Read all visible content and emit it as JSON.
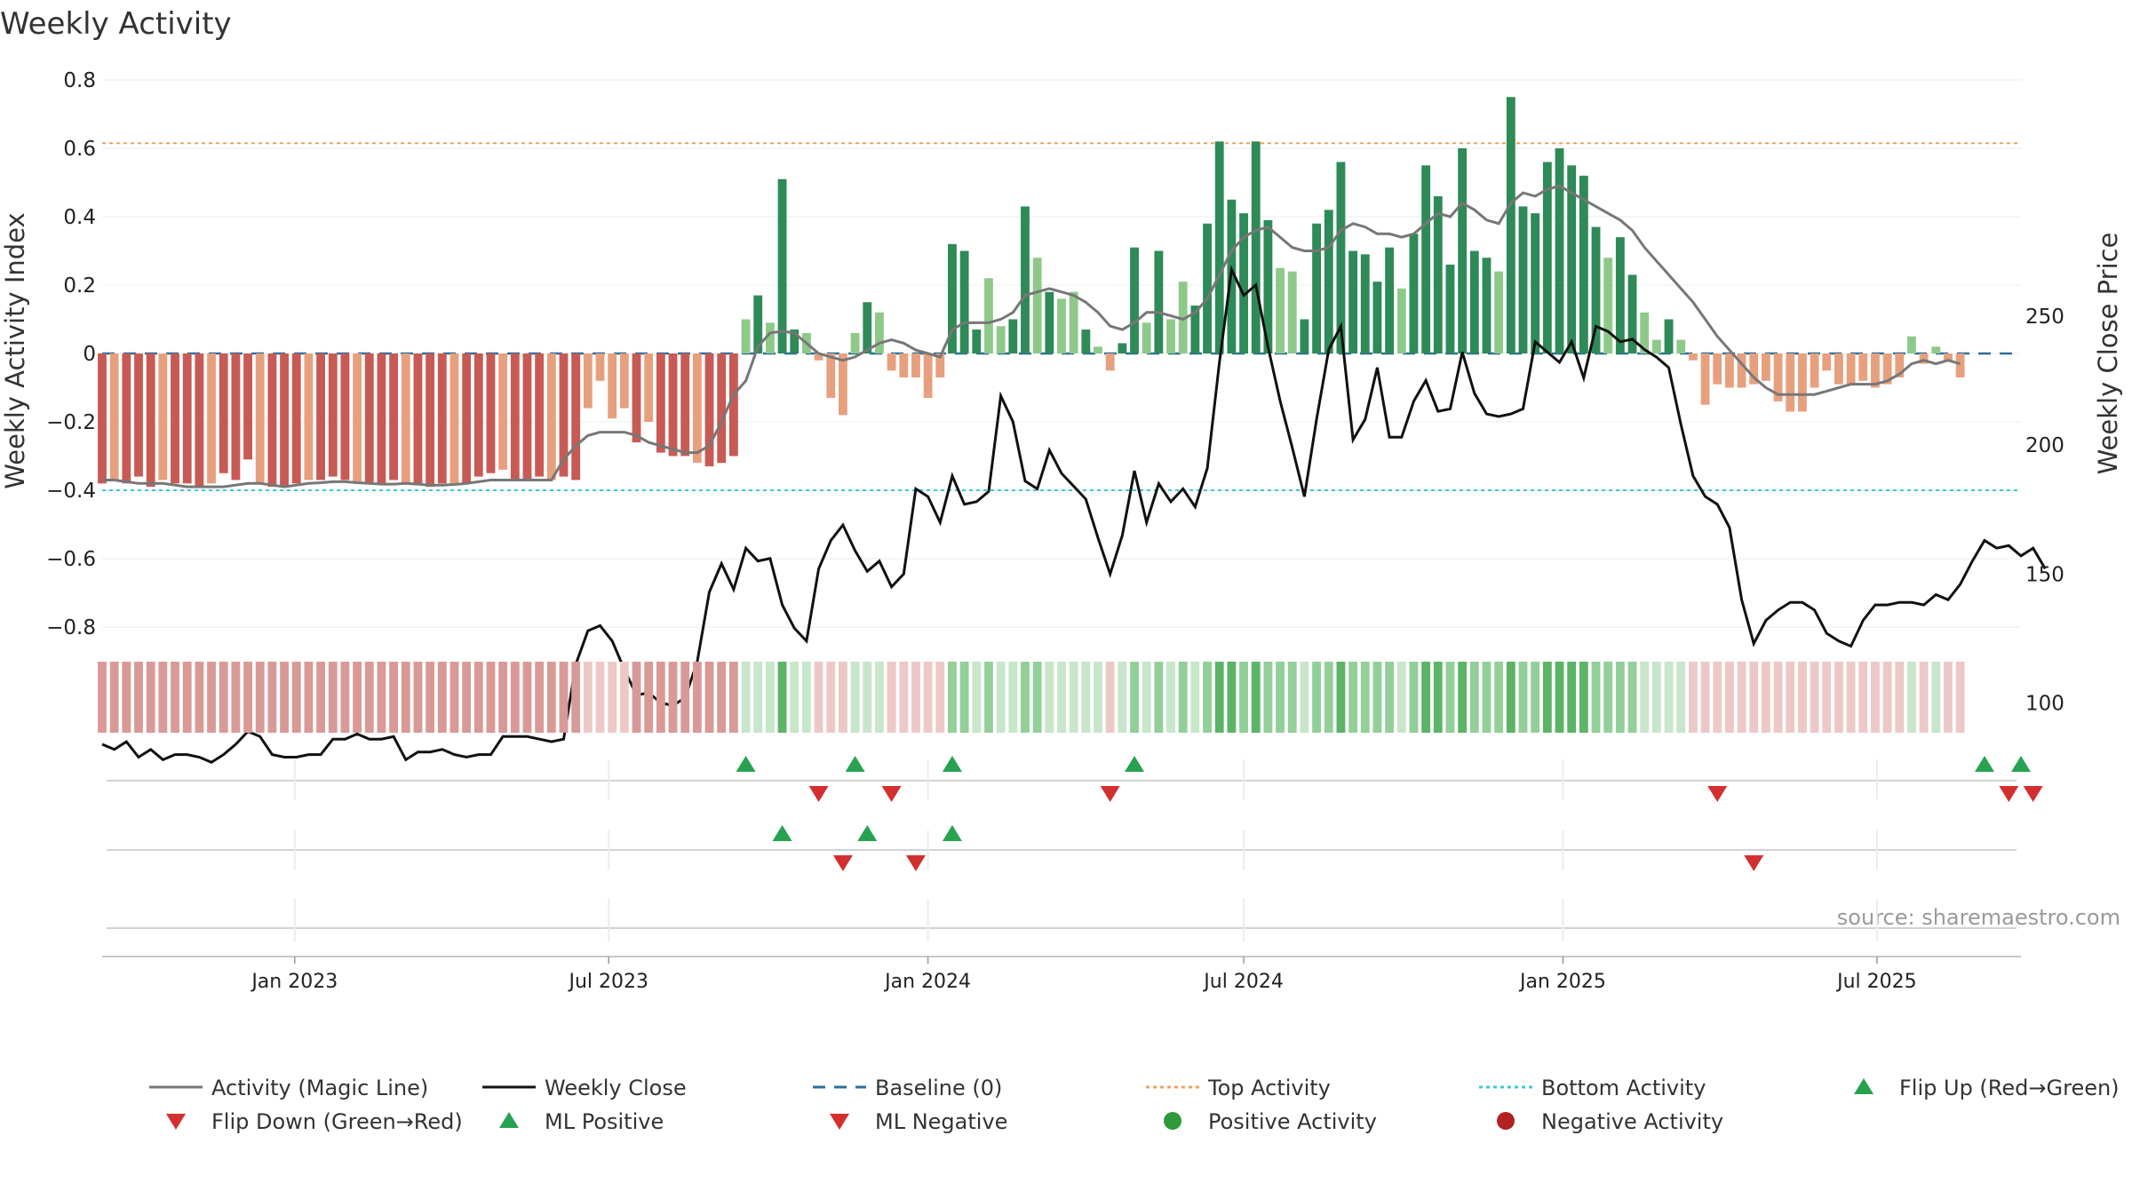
{
  "chart_data": {
    "type": "bar+line",
    "title": "Weekly Activity",
    "ylabel_left": "Weekly Activity Index",
    "ylabel_right": "Weekly Close Price",
    "source": "source: sharemaestro.com",
    "ylim_left": [
      -0.88,
      0.84
    ],
    "ylim_right": [
      64,
      280
    ],
    "yticks_left": [
      0.8,
      0.6,
      0.4,
      0.2,
      0,
      -0.2,
      -0.4,
      -0.6,
      -0.8
    ],
    "yticks_left_labels": [
      "0.8",
      "0.6",
      "0.4",
      "0.2",
      "0",
      "−0.2",
      "−0.4",
      "−0.6",
      "−0.8"
    ],
    "yticks_right": [
      250,
      200,
      150,
      100
    ],
    "yticks_right_labels": [
      "250",
      "200",
      "150",
      "100"
    ],
    "x_range": [
      "2022-09-12",
      "2025-09-22"
    ],
    "x_ticks": [
      {
        "date": "2023-01-01",
        "label": "Jan 2023"
      },
      {
        "date": "2023-07-01",
        "label": "Jul 2023"
      },
      {
        "date": "2024-01-01",
        "label": "Jan 2024"
      },
      {
        "date": "2024-07-01",
        "label": "Jul 2024"
      },
      {
        "date": "2025-01-01",
        "label": "Jan 2025"
      },
      {
        "date": "2025-07-01",
        "label": "Jul 2025"
      }
    ],
    "top_activity": 0.615,
    "bottom_activity": -0.4,
    "baseline": 0,
    "weeks_start": "2022-09-12",
    "activity": [
      -0.38,
      -0.37,
      -0.38,
      -0.36,
      -0.39,
      -0.37,
      -0.38,
      -0.38,
      -0.39,
      -0.38,
      -0.35,
      -0.37,
      -0.31,
      -0.38,
      -0.39,
      -0.39,
      -0.38,
      -0.37,
      -0.37,
      -0.36,
      -0.37,
      -0.38,
      -0.38,
      -0.38,
      -0.37,
      -0.38,
      -0.38,
      -0.39,
      -0.38,
      -0.38,
      -0.38,
      -0.36,
      -0.35,
      -0.34,
      -0.37,
      -0.37,
      -0.36,
      -0.37,
      -0.36,
      -0.37,
      -0.16,
      -0.08,
      -0.19,
      -0.16,
      -0.26,
      -0.2,
      -0.29,
      -0.3,
      -0.3,
      -0.32,
      -0.33,
      -0.32,
      -0.3,
      0.1,
      0.17,
      0.09,
      0.51,
      0.07,
      0.06,
      -0.02,
      -0.13,
      -0.18,
      0.06,
      0.15,
      0.12,
      -0.05,
      -0.07,
      -0.07,
      -0.13,
      -0.07,
      0.32,
      0.3,
      0.07,
      0.22,
      0.08,
      0.1,
      0.43,
      0.28,
      0.18,
      0.16,
      0.18,
      0.07,
      0.02,
      -0.05,
      0.03,
      0.31,
      0.09,
      0.3,
      0.1,
      0.21,
      0.14,
      0.38,
      0.62,
      0.45,
      0.41,
      0.62,
      0.39,
      0.25,
      0.24,
      0.1,
      0.38,
      0.42,
      0.56,
      0.3,
      0.29,
      0.21,
      0.31,
      0.19,
      0.35,
      0.55,
      0.46,
      0.26,
      0.6,
      0.3,
      0.28,
      0.24,
      0.75,
      0.43,
      0.41,
      0.56,
      0.6,
      0.55,
      0.52,
      0.37,
      0.28,
      0.34,
      0.23,
      0.12,
      0.04,
      0.1,
      0.04,
      -0.02,
      -0.15,
      -0.09,
      -0.1,
      -0.1,
      -0.09,
      -0.08,
      -0.14,
      -0.17,
      -0.17,
      -0.1,
      -0.05,
      -0.09,
      -0.09,
      -0.08,
      -0.1,
      -0.09,
      -0.07,
      0.05,
      -0.03,
      0.02,
      -0.02,
      -0.07
    ],
    "magic_line": [
      -0.37,
      -0.37,
      -0.375,
      -0.38,
      -0.38,
      -0.38,
      -0.385,
      -0.39,
      -0.39,
      -0.39,
      -0.39,
      -0.385,
      -0.38,
      -0.38,
      -0.385,
      -0.39,
      -0.385,
      -0.38,
      -0.378,
      -0.375,
      -0.375,
      -0.378,
      -0.38,
      -0.382,
      -0.382,
      -0.38,
      -0.382,
      -0.385,
      -0.385,
      -0.383,
      -0.38,
      -0.375,
      -0.37,
      -0.37,
      -0.37,
      -0.37,
      -0.37,
      -0.37,
      -0.31,
      -0.27,
      -0.24,
      -0.23,
      -0.23,
      -0.23,
      -0.24,
      -0.26,
      -0.27,
      -0.28,
      -0.29,
      -0.29,
      -0.27,
      -0.2,
      -0.12,
      -0.08,
      0.02,
      0.06,
      0.065,
      0.06,
      0.03,
      0.0,
      -0.01,
      -0.02,
      -0.01,
      0.01,
      0.03,
      0.04,
      0.03,
      0.01,
      0.0,
      -0.01,
      0.07,
      0.09,
      0.09,
      0.09,
      0.1,
      0.12,
      0.17,
      0.18,
      0.19,
      0.18,
      0.17,
      0.15,
      0.12,
      0.08,
      0.07,
      0.09,
      0.12,
      0.12,
      0.11,
      0.1,
      0.12,
      0.16,
      0.23,
      0.3,
      0.34,
      0.36,
      0.37,
      0.34,
      0.31,
      0.3,
      0.3,
      0.31,
      0.36,
      0.38,
      0.37,
      0.35,
      0.35,
      0.34,
      0.35,
      0.38,
      0.41,
      0.4,
      0.44,
      0.42,
      0.39,
      0.38,
      0.44,
      0.47,
      0.46,
      0.48,
      0.49,
      0.47,
      0.45,
      0.43,
      0.41,
      0.39,
      0.36,
      0.31,
      0.27,
      0.23,
      0.19,
      0.15,
      0.1,
      0.05,
      0.01,
      -0.03,
      -0.07,
      -0.1,
      -0.12,
      -0.12,
      -0.12,
      -0.12,
      -0.11,
      -0.1,
      -0.09,
      -0.09,
      -0.09,
      -0.08,
      -0.06,
      -0.03,
      -0.02,
      -0.03,
      -0.02,
      -0.03
    ],
    "weekly_close": [
      84,
      82,
      85,
      79,
      82,
      78,
      80,
      80,
      79,
      77,
      80,
      84,
      89,
      87,
      80,
      79,
      79,
      80,
      80,
      86,
      86,
      88,
      86,
      86,
      87,
      78,
      81,
      81,
      82,
      80,
      79,
      80,
      80,
      87,
      87,
      87,
      86,
      85,
      86,
      115,
      128,
      130,
      124,
      113,
      103,
      104,
      100,
      99,
      102,
      116,
      143,
      154,
      144,
      160,
      155,
      156,
      138,
      129,
      124,
      152,
      163,
      169,
      159,
      151,
      155,
      145,
      150,
      183,
      180,
      170,
      188,
      177,
      178,
      182,
      219,
      209,
      186,
      183,
      198,
      189,
      184,
      179,
      164,
      150,
      165,
      190,
      170,
      185,
      178,
      183,
      176,
      191,
      232,
      268,
      258,
      262,
      238,
      217,
      199,
      180,
      210,
      237,
      246,
      202,
      210,
      230,
      203,
      203,
      217,
      225,
      213,
      214,
      236,
      220,
      212,
      211,
      212,
      214,
      240,
      236,
      232,
      240,
      226,
      246,
      244,
      240,
      241,
      237,
      234,
      230,
      208,
      188,
      180,
      177,
      168,
      140,
      123,
      132,
      136,
      139,
      139,
      136,
      127,
      124,
      122,
      132,
      138,
      138,
      139,
      139,
      138,
      142,
      140,
      146,
      155,
      163,
      160,
      161,
      157,
      160,
      152
    ],
    "strip_colors": {
      "red": "#d99a97",
      "light_red": "#ecc9c7",
      "light_green": "#c8e6ca",
      "mid_green": "#93cf98",
      "green": "#5cb466"
    },
    "bar_colors": {
      "dark_red": "#c85a55",
      "light_red": "#e7a07e",
      "dark_green": "#2e8a57",
      "light_green": "#8fc98a"
    },
    "line_colors": {
      "magic": "#777777",
      "close": "#111111",
      "baseline": "#2e6e9e",
      "top": "#f0a060",
      "bottom": "#3cc8dc"
    },
    "flip_up_weeks": [
      53,
      62,
      70,
      85,
      155,
      158
    ],
    "flip_down_weeks": [
      59,
      65,
      83,
      133,
      157,
      159
    ],
    "ml_positive_weeks": [
      56,
      63,
      70
    ],
    "ml_negative_weeks": [
      61,
      67,
      136
    ],
    "legend": [
      {
        "label": "Activity (Magic Line)",
        "kind": "line",
        "color": "#777777"
      },
      {
        "label": "Weekly Close",
        "kind": "line",
        "color": "#111111"
      },
      {
        "label": "Baseline (0)",
        "kind": "dash",
        "color": "#2e6e9e"
      },
      {
        "label": "Top Activity",
        "kind": "dot",
        "color": "#f0a060"
      },
      {
        "label": "Bottom Activity",
        "kind": "dot",
        "color": "#3cc8dc"
      },
      {
        "label": "Flip Up (Red→Green)",
        "kind": "up",
        "color": "#27a251"
      },
      {
        "label": "Flip Down (Green→Red)",
        "kind": "down",
        "color": "#d32f2f"
      },
      {
        "label": "ML Positive",
        "kind": "up",
        "color": "#27a251"
      },
      {
        "label": "ML Negative",
        "kind": "down",
        "color": "#d32f2f"
      },
      {
        "label": "Positive Activity",
        "kind": "circle",
        "color": "#2e9b3a"
      },
      {
        "label": "Negative Activity",
        "kind": "circle",
        "color": "#b22222"
      }
    ]
  }
}
